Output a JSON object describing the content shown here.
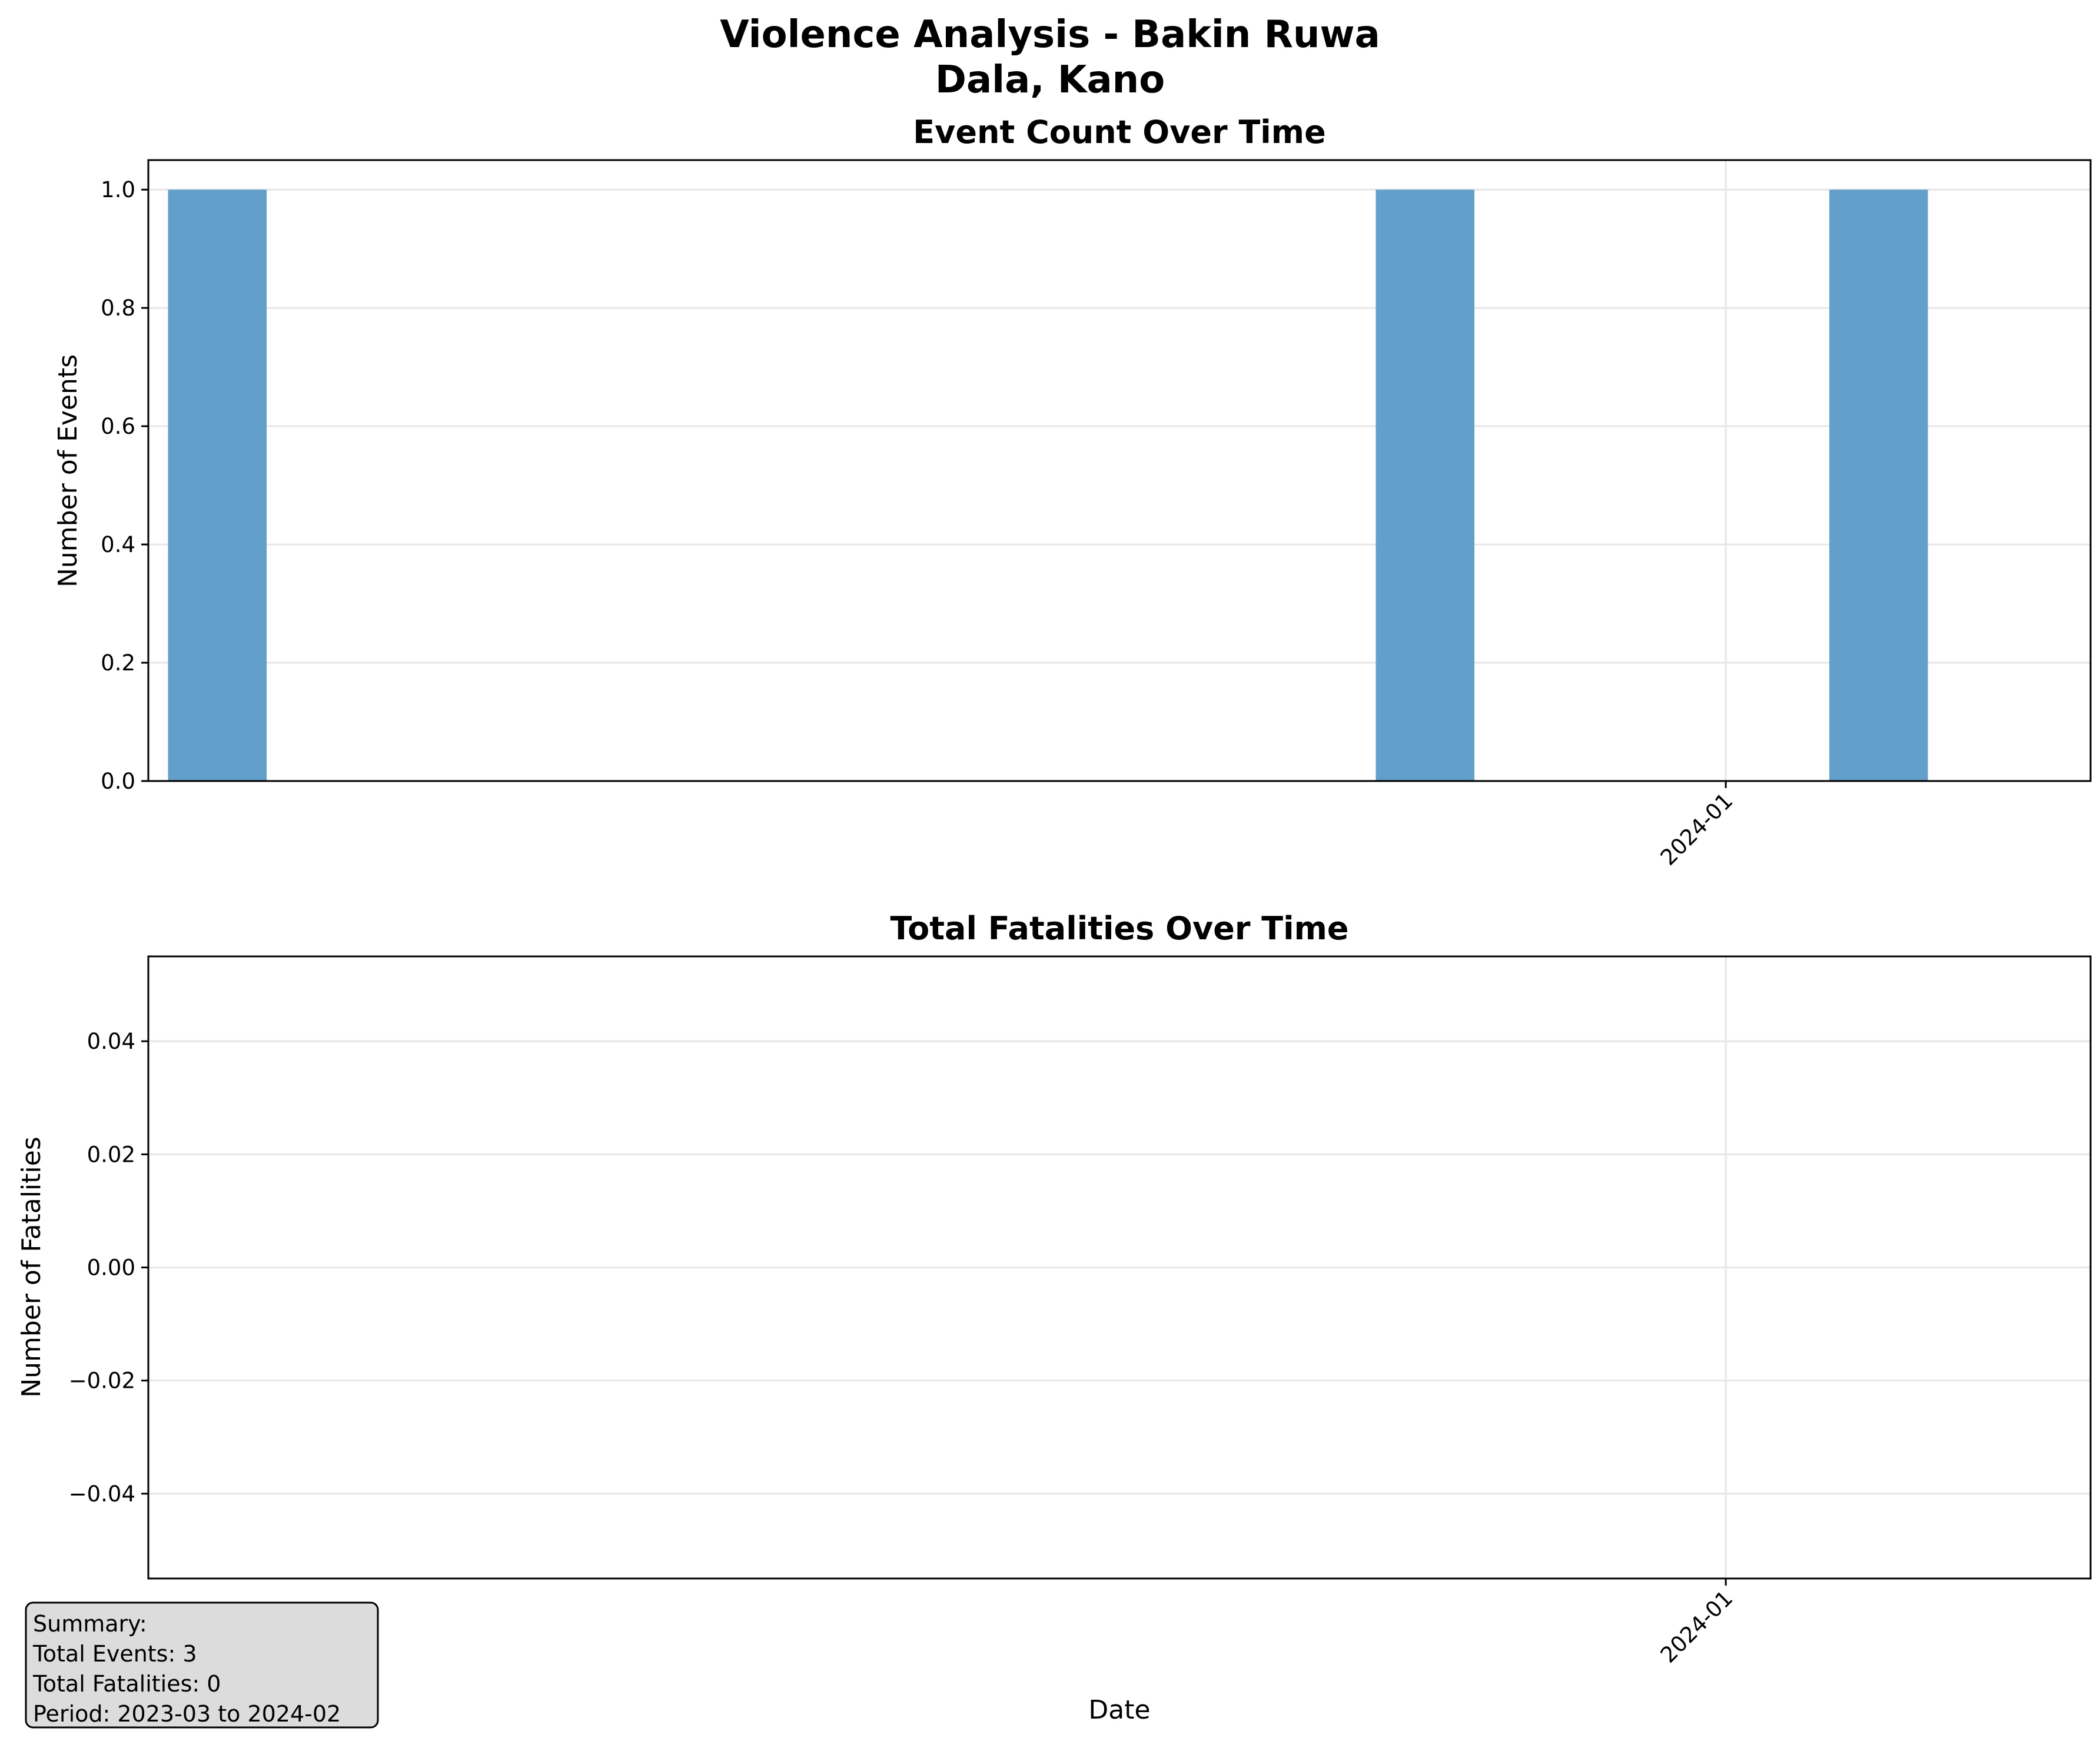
{
  "figure": {
    "title_line1": "Violence Analysis - Bakin Ruwa",
    "title_line2": "Dala, Kano"
  },
  "chart_data": [
    {
      "type": "bar",
      "title": "Event Count Over Time",
      "xlabel": "",
      "ylabel": "Number of Events",
      "x_type": "date",
      "x": [
        "2023-03",
        "2023-11",
        "2024-02"
      ],
      "values": [
        1,
        1,
        1
      ],
      "xlim": [
        "2023-02-15",
        "2024-03-15"
      ],
      "ylim": [
        0,
        1.05
      ],
      "yticks": [
        0.0,
        0.2,
        0.4,
        0.6,
        0.8,
        1.0
      ],
      "ytick_labels": [
        "0.0",
        "0.2",
        "0.4",
        "0.6",
        "0.8",
        "1.0"
      ],
      "xticks": [
        "2024-01"
      ],
      "xtick_labels": [
        "2024-01"
      ],
      "bar_color": "#62a0cb",
      "grid": true
    },
    {
      "type": "line",
      "title": "Total Fatalities Over Time",
      "xlabel": "Date",
      "ylabel": "Number of Fatalities",
      "x_type": "date",
      "x": [],
      "values": [],
      "xlim": [
        "2023-02-15",
        "2024-03-15"
      ],
      "ylim": [
        -0.055,
        0.055
      ],
      "yticks": [
        -0.04,
        -0.02,
        0.0,
        0.02,
        0.04
      ],
      "ytick_labels": [
        "−0.04",
        "−0.02",
        "0.00",
        "0.02",
        "0.04"
      ],
      "xticks": [
        "2024-01"
      ],
      "xtick_labels": [
        "2024-01"
      ],
      "grid": true
    }
  ],
  "summary": {
    "heading": "Summary:",
    "total_events": "Total Events: 3",
    "total_fatalities": "Total Fatalities: 0",
    "period": "Period: 2023-03 to 2024-02"
  }
}
